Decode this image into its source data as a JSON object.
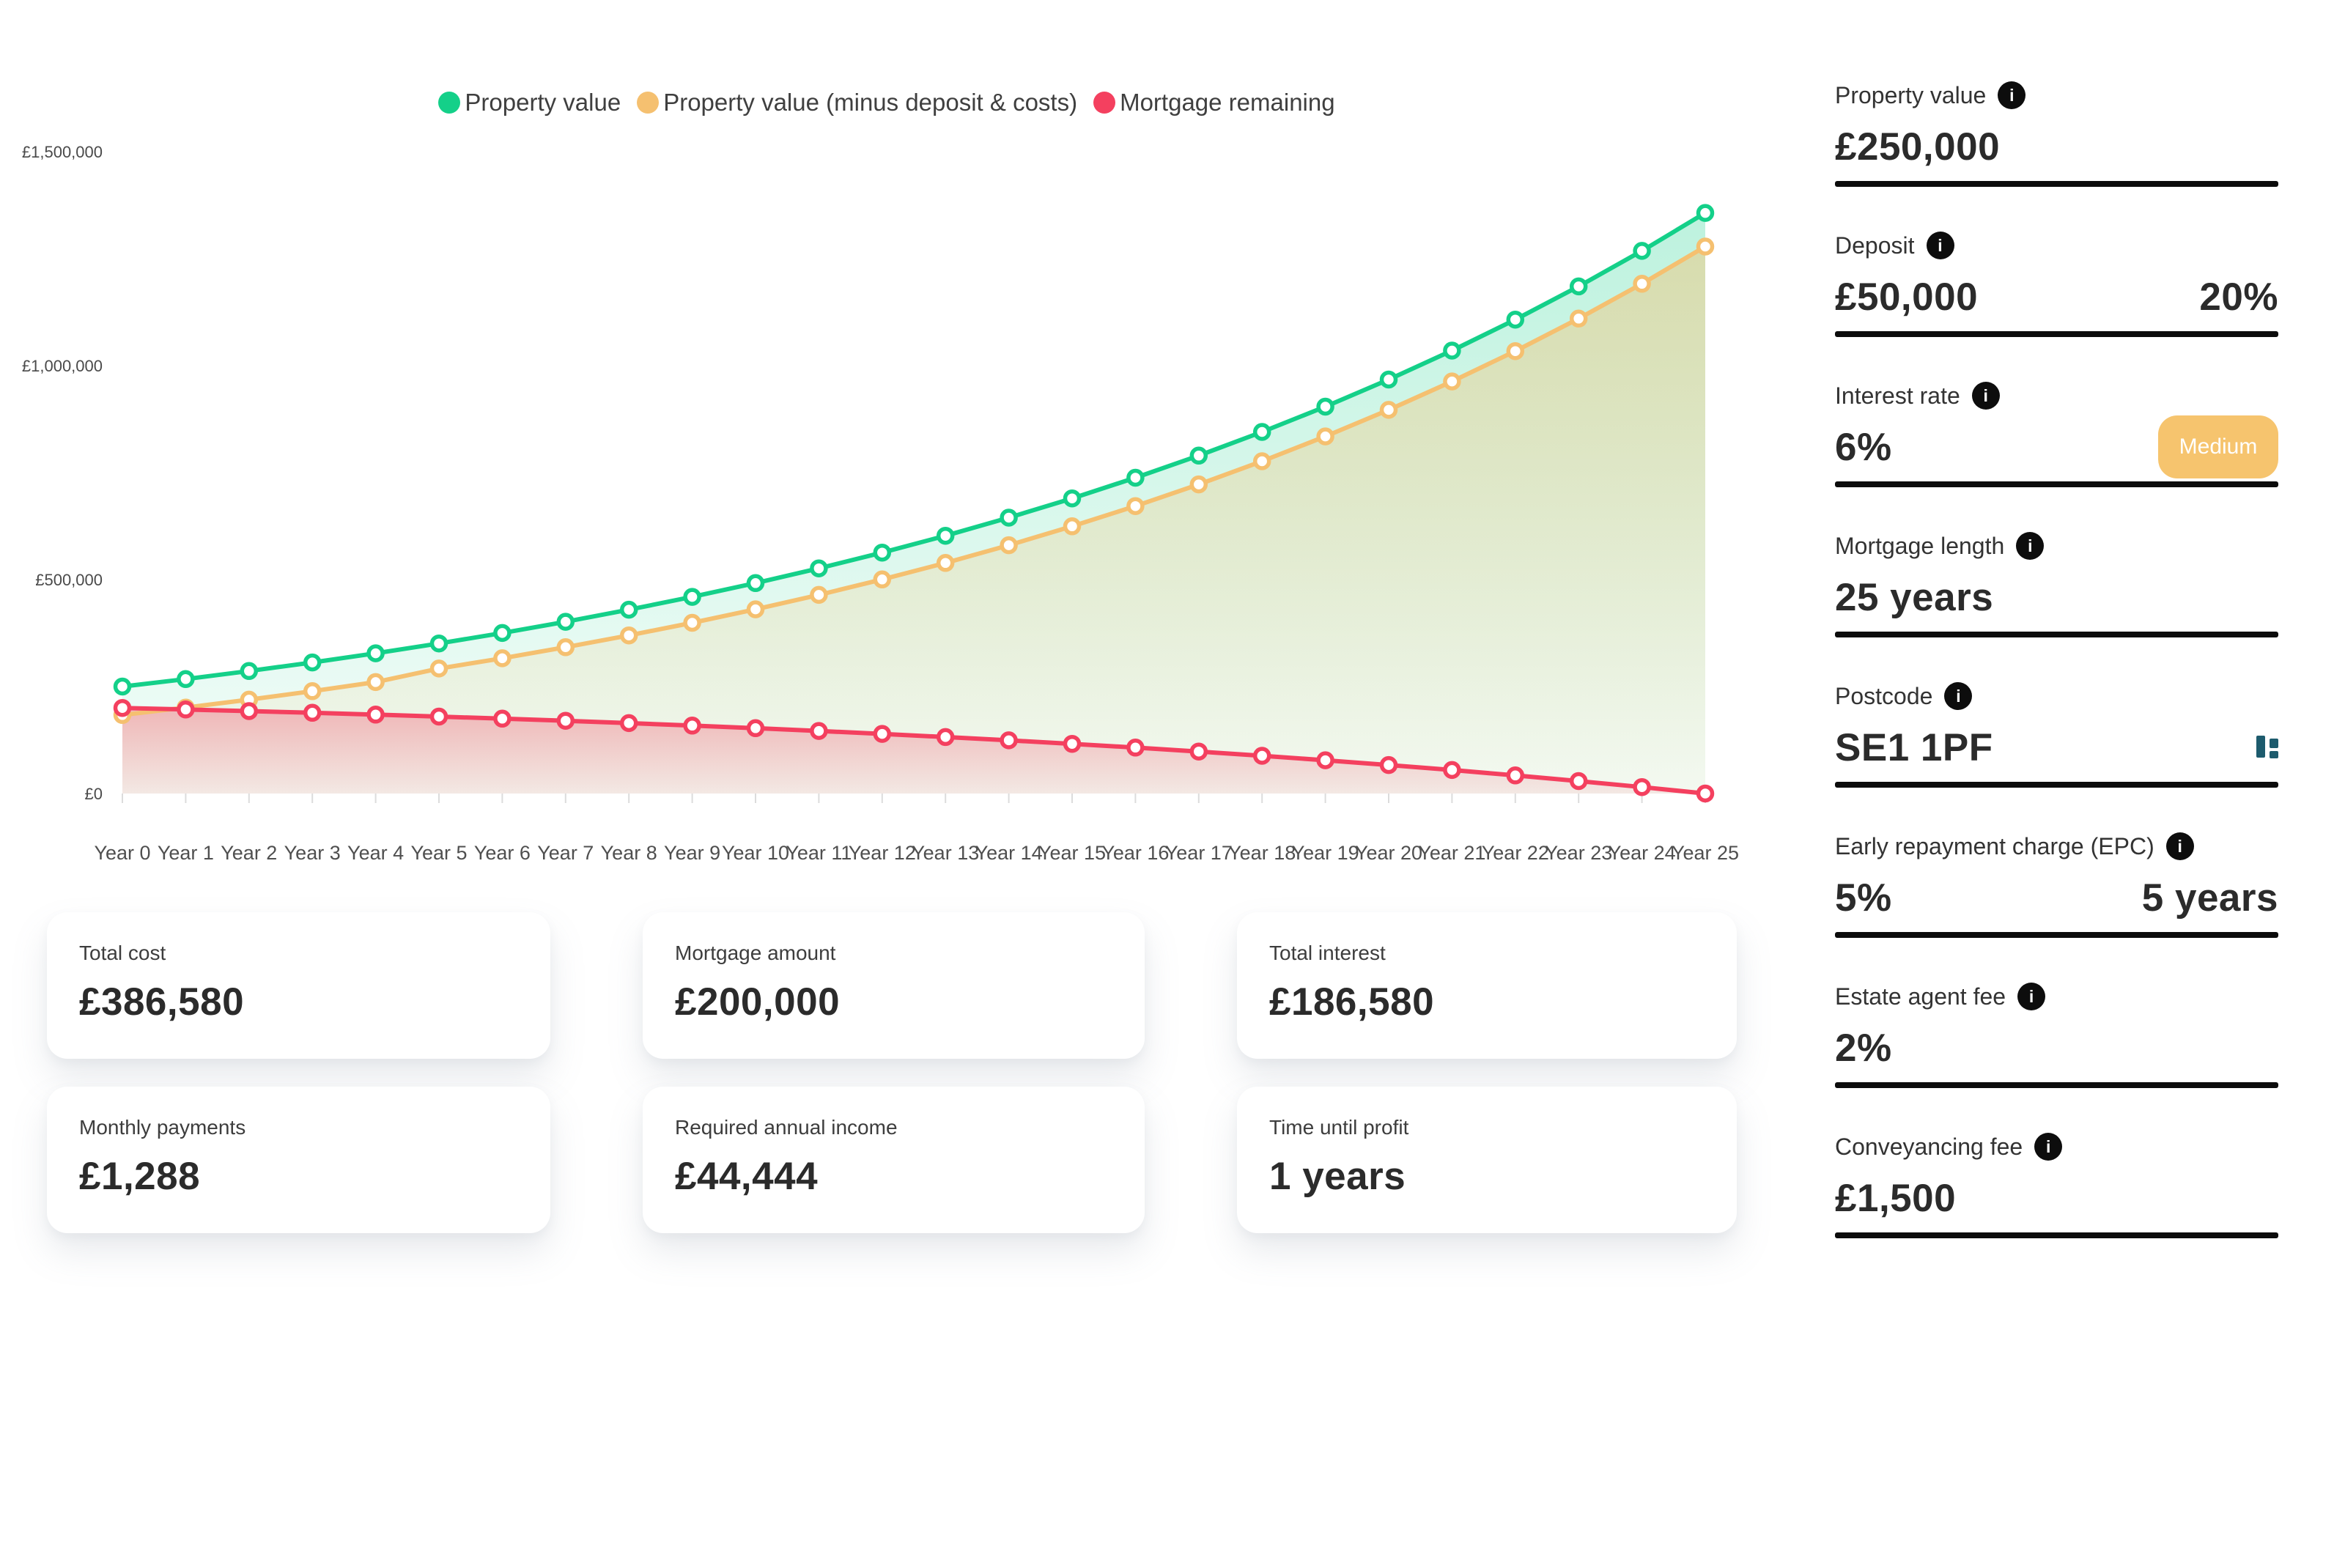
{
  "icons": {
    "info_glyph": "i"
  },
  "chart_data": {
    "type": "area",
    "title": "",
    "xlabel": "",
    "ylabel": "",
    "grid": false,
    "legend_position": "top",
    "ylim": [
      0,
      1500000
    ],
    "y_ticks": [
      {
        "value": 0,
        "label": "£0"
      },
      {
        "value": 500000,
        "label": "£500,000"
      },
      {
        "value": 1000000,
        "label": "£1,000,000"
      },
      {
        "value": 1500000,
        "label": "£1,500,000"
      }
    ],
    "categories": [
      "Year 0",
      "Year 1",
      "Year 2",
      "Year 3",
      "Year 4",
      "Year 5",
      "Year 6",
      "Year 7",
      "Year 8",
      "Year 9",
      "Year 10",
      "Year 11",
      "Year 12",
      "Year 13",
      "Year 14",
      "Year 15",
      "Year 16",
      "Year 17",
      "Year 18",
      "Year 19",
      "Year 20",
      "Year 21",
      "Year 22",
      "Year 23",
      "Year 24",
      "Year 25"
    ],
    "series": [
      {
        "name": "Property value",
        "color": "#14d089",
        "values": [
          250000,
          267500,
          286225,
          306261,
          327699,
          350638,
          375183,
          401446,
          429547,
          459615,
          491788,
          526213,
          563048,
          602462,
          644634,
          689758,
          738041,
          789704,
          844983,
          904132,
          967421,
          1035141,
          1107600,
          1185132,
          1268092,
          1356858
        ]
      },
      {
        "name": "Property value (minus deposit & costs)",
        "color": "#f5c070",
        "values": [
          183500,
          200828,
          219368,
          239204,
          260426,
          292125,
          316179,
          341917,
          369456,
          398923,
          430452,
          464189,
          500287,
          538913,
          580241,
          624463,
          671780,
          722410,
          776583,
          834549,
          896573,
          962938,
          1033948,
          1109929,
          1191230,
          1278221
        ]
      },
      {
        "name": "Mortgage remaining",
        "color": "#f4405f",
        "values": [
          200000,
          196440,
          192660,
          188647,
          184387,
          179864,
          175062,
          169964,
          164552,
          158806,
          152706,
          146230,
          139354,
          132055,
          124305,
          116077,
          107341,
          98067,
          88220,
          77766,
          66668,
          54885,
          42375,
          29093,
          14992,
          0
        ]
      }
    ]
  },
  "cards": [
    {
      "label": "Total cost",
      "value": "£386,580"
    },
    {
      "label": "Mortgage amount",
      "value": "£200,000"
    },
    {
      "label": "Total interest",
      "value": "£186,580"
    },
    {
      "label": "Monthly payments",
      "value": "£1,288"
    },
    {
      "label": "Required annual income",
      "value": "£44,444"
    },
    {
      "label": "Time until profit",
      "value": "1 years"
    }
  ],
  "sidebar": {
    "brand_color": "#1d5b6d",
    "underline_color": "#0c0c0c",
    "fields": [
      {
        "label": "Property value",
        "value": "£250,000"
      },
      {
        "label": "Deposit",
        "value": "£50,000",
        "secondary": "20%"
      },
      {
        "label": "Interest rate",
        "value": "6%",
        "badge": "Medium",
        "badge_color": "#f6c46e"
      },
      {
        "label": "Mortgage length",
        "value": "25 years"
      },
      {
        "label": "Postcode",
        "value": "SE1 1PF"
      },
      {
        "label": "Early repayment charge (EPC)",
        "value": "5%",
        "secondary": "5 years"
      },
      {
        "label": "Estate agent fee",
        "value": "2%"
      },
      {
        "label": "Conveyancing fee",
        "value": "£1,500"
      }
    ]
  }
}
